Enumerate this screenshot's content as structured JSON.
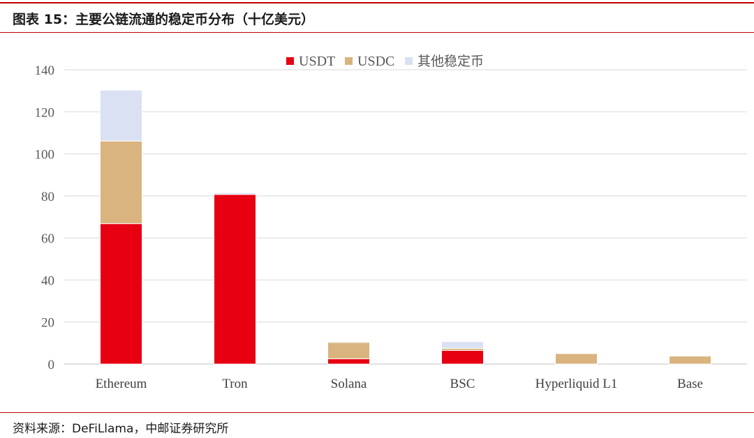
{
  "header": {
    "title": "图表 15：主要公链流通的稳定币分布（十亿美元）"
  },
  "footer": {
    "source": "资料来源：DeFiLlama，中邮证券研究所"
  },
  "chart_data": {
    "type": "bar",
    "stacked": true,
    "categories": [
      "Ethereum",
      "Tron",
      "Solana",
      "BSC",
      "Hyperliquid L1",
      "Base"
    ],
    "series": [
      {
        "name": "USDT",
        "color": "#e60012",
        "values": [
          66.8,
          80.7,
          2.5,
          6.5,
          0,
          0
        ]
      },
      {
        "name": "USDC",
        "color": "#d9b47e",
        "values": [
          39.3,
          0,
          7.8,
          1.0,
          5.0,
          3.8
        ]
      },
      {
        "name": "其他稳定币",
        "color": "#d9e1f2",
        "values": [
          24.2,
          0.8,
          0.5,
          3.2,
          0,
          0
        ]
      }
    ],
    "ylim": [
      0,
      140
    ],
    "yticks": [
      0,
      20,
      40,
      60,
      80,
      100,
      120,
      140
    ],
    "grid": true,
    "legend_position": "top-center"
  }
}
